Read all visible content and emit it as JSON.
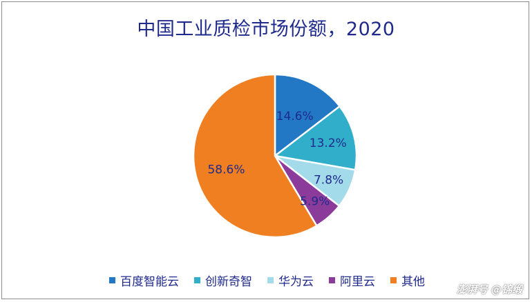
{
  "chart_data": {
    "type": "pie",
    "title": "中国工业质检市场份额，2020",
    "categories": [
      "百度智能云",
      "创新奇智",
      "华为云",
      "阿里云",
      "其他"
    ],
    "values": [
      14.6,
      13.2,
      7.8,
      5.9,
      58.6
    ],
    "data_labels": [
      "14.6%",
      "13.2%",
      "7.8%",
      "5.9%",
      "58.6%"
    ],
    "colors": [
      "#2278c4",
      "#31aeca",
      "#a3dbea",
      "#8b3c9a",
      "#f07f22"
    ],
    "label_color": "#1f2a8c",
    "legend_position": "bottom"
  },
  "watermark": "澎湃号 @锦缎"
}
